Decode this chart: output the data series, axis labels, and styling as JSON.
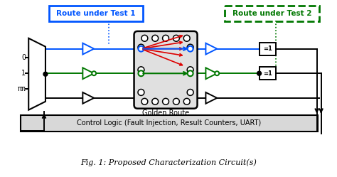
{
  "title": "Fig. 1: Proposed Characterization Circuit(s)",
  "label1": "Route under Test 1",
  "label2": "Route under Test 2",
  "golden_route_label": "Golden Route",
  "control_logic_label": "Control Logic (Fault Injection, Result Counters, UART)",
  "input_labels": [
    "0",
    "1",
    "ππ"
  ],
  "xor_label": "=1",
  "bg_color": "#ffffff",
  "blue_color": "#0055ff",
  "green_color": "#007700",
  "red_color": "#dd0000",
  "black_color": "#000000",
  "gray_color": "#cccccc"
}
